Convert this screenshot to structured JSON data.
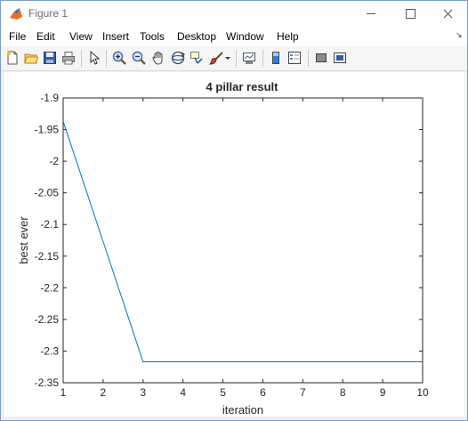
{
  "window": {
    "title": "Figure 1",
    "icons": {
      "app": "matlab-icon",
      "minimize": "minimize-icon",
      "maximize": "maximize-icon",
      "close": "close-icon"
    }
  },
  "menu": {
    "items": [
      "File",
      "Edit",
      "View",
      "Insert",
      "Tools",
      "Desktop",
      "Window",
      "Help"
    ]
  },
  "toolbar": {
    "icons": [
      "new-figure-icon",
      "open-file-icon",
      "save-icon",
      "print-icon",
      "pointer-icon",
      "zoom-in-icon",
      "zoom-out-icon",
      "pan-icon",
      "rotate-3d-icon",
      "data-cursor-icon",
      "brush-icon",
      "brush-dropdown-icon",
      "link-plot-icon",
      "colorbar-icon",
      "legend-icon",
      "hide-plot-tools-icon",
      "show-plot-tools-icon"
    ]
  },
  "chart_data": {
    "type": "line",
    "title": "4 pillar result",
    "xlabel": "iteration",
    "ylabel": "best ever",
    "xlim": [
      1,
      10
    ],
    "ylim": [
      -2.35,
      -1.9
    ],
    "xticks": [
      "1",
      "2",
      "3",
      "4",
      "5",
      "6",
      "7",
      "8",
      "9",
      "10"
    ],
    "yticks": [
      "-1.9",
      "-1.95",
      "-2",
      "-2.05",
      "-2.1",
      "-2.15",
      "-2.2",
      "-2.25",
      "-2.3",
      "-2.35"
    ],
    "grid": false,
    "line_color": "#0072bd",
    "series": [
      {
        "x": [
          1,
          2,
          3,
          4,
          5,
          6,
          7,
          8,
          9,
          10
        ],
        "y": [
          -1.937,
          -2.127,
          -2.317,
          -2.317,
          -2.317,
          -2.317,
          -2.317,
          -2.317,
          -2.317,
          -2.317
        ]
      }
    ]
  }
}
